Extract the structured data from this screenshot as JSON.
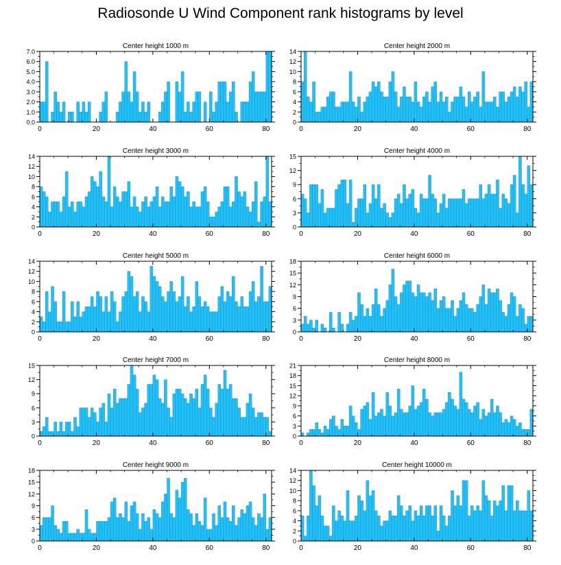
{
  "title": "Radiosonde U Wind Component rank histograms by level",
  "bar_color": "#19c3ff",
  "bar_stroke": "#5a6a75",
  "chart_data": [
    {
      "type": "bar",
      "title": "Center height 1000 m",
      "xlabel": "",
      "ylabel": "",
      "xlim": [
        0,
        82
      ],
      "xticks": [
        0,
        20,
        40,
        60,
        80
      ],
      "ylim": [
        0,
        7
      ],
      "yticks": [
        0.0,
        1.0,
        2.0,
        3.0,
        4.0,
        5.0,
        6.0,
        7.0
      ],
      "ytick_labels": [
        "0.0",
        "1.0",
        "2.0",
        "3.0",
        "4.0",
        "5.0",
        "6.0",
        "7.0"
      ],
      "label_side": "left",
      "values": [
        2,
        2,
        6,
        0,
        1,
        3,
        2,
        1,
        2,
        0,
        1,
        1,
        0,
        2,
        1,
        2,
        1,
        2,
        0,
        0,
        0,
        1,
        2,
        3,
        0,
        0,
        0,
        1,
        2,
        3,
        6,
        3,
        2,
        5,
        3,
        1,
        2,
        1,
        2,
        0,
        0,
        0,
        1,
        2,
        3,
        4,
        0,
        0,
        4,
        3,
        5,
        1,
        2,
        1,
        2,
        3,
        3,
        0,
        2,
        0,
        3,
        1,
        2,
        4,
        4,
        4,
        2,
        3,
        4,
        1,
        0,
        2,
        2,
        2,
        4,
        5,
        3,
        3,
        3,
        3,
        7,
        7
      ]
    },
    {
      "type": "bar",
      "title": "Center height 2000 m",
      "xlabel": "",
      "ylabel": "",
      "xlim": [
        0,
        82
      ],
      "xticks": [
        0,
        20,
        40,
        60,
        80
      ],
      "ylim": [
        0,
        14
      ],
      "yticks": [
        0,
        2,
        4,
        6,
        8,
        10,
        12,
        14
      ],
      "ytick_labels": [
        "0",
        "2",
        "4",
        "6",
        "8",
        "10",
        "12",
        "14"
      ],
      "label_side": "left",
      "values": [
        8,
        14,
        5,
        4,
        8,
        2,
        2,
        3,
        3,
        5,
        6,
        6,
        3,
        3,
        4,
        4,
        4,
        10,
        4,
        3,
        5,
        2,
        4,
        5,
        6,
        8,
        7,
        8,
        6,
        5,
        5,
        8,
        10,
        6,
        3,
        5,
        7,
        5,
        5,
        4,
        8,
        4,
        3,
        5,
        6,
        4,
        7,
        8,
        4,
        6,
        4,
        5,
        2,
        4,
        5,
        5,
        7,
        5,
        3,
        6,
        4,
        5,
        6,
        3,
        10,
        4,
        4,
        4,
        5,
        3,
        6,
        6,
        4,
        5,
        6,
        7,
        5,
        7,
        6,
        8,
        3,
        8
      ]
    },
    {
      "type": "bar",
      "title": "Center height 3000 m",
      "xlabel": "",
      "ylabel": "",
      "xlim": [
        0,
        82
      ],
      "xticks": [
        0,
        20,
        40,
        60,
        80
      ],
      "ylim": [
        0,
        14
      ],
      "yticks": [
        0,
        2,
        4,
        6,
        8,
        10,
        12,
        14
      ],
      "ytick_labels": [
        "0",
        "2",
        "4",
        "6",
        "8",
        "10",
        "12",
        "14"
      ],
      "label_side": "left",
      "values": [
        8,
        7,
        6,
        3,
        5,
        5,
        5,
        3,
        6,
        11,
        4,
        5,
        3,
        5,
        5,
        4,
        6,
        7,
        10,
        9,
        8,
        11,
        6,
        5,
        14,
        4,
        8,
        6,
        5,
        7,
        7,
        9,
        4,
        6,
        4,
        3,
        5,
        6,
        4,
        5,
        6,
        8,
        4,
        6,
        5,
        5,
        8,
        6,
        10,
        9,
        8,
        6,
        7,
        4,
        5,
        4,
        4,
        7,
        8,
        5,
        2,
        2,
        3,
        4,
        5,
        8,
        8,
        4,
        5,
        10,
        7,
        6,
        7,
        4,
        3,
        5,
        9,
        1,
        5,
        6,
        14,
        5
      ]
    },
    {
      "type": "bar",
      "title": "Center height 4000 m",
      "xlabel": "",
      "ylabel": "",
      "xlim": [
        0,
        82
      ],
      "xticks": [
        0,
        20,
        40,
        60,
        80
      ],
      "ylim": [
        0,
        15
      ],
      "yticks": [
        0,
        3,
        6,
        9,
        12,
        15
      ],
      "ytick_labels": [
        "0",
        "3",
        "6",
        "9",
        "12",
        "15"
      ],
      "label_side": "left",
      "values": [
        7,
        6,
        3,
        9,
        9,
        9,
        5,
        8,
        3,
        4,
        4,
        4,
        8,
        9,
        10,
        10,
        5,
        10,
        1,
        4,
        6,
        6,
        9,
        3,
        5,
        9,
        6,
        9,
        4,
        5,
        3,
        2,
        3,
        6,
        7,
        5,
        9,
        6,
        7,
        8,
        4,
        3,
        7,
        6,
        6,
        11,
        7,
        6,
        3,
        5,
        7,
        4,
        6,
        6,
        6,
        6,
        6,
        8,
        5,
        6,
        6,
        6,
        6,
        9,
        6,
        7,
        9,
        7,
        7,
        10,
        4,
        7,
        6,
        5,
        9,
        11,
        3,
        15,
        9,
        7,
        13,
        9
      ]
    },
    {
      "type": "bar",
      "title": "Center height 5000 m",
      "xlabel": "",
      "ylabel": "",
      "xlim": [
        0,
        82
      ],
      "xticks": [
        0,
        20,
        40,
        60,
        80
      ],
      "ylim": [
        0,
        14
      ],
      "yticks": [
        0,
        2,
        4,
        6,
        8,
        10,
        12,
        14
      ],
      "ytick_labels": [
        "0",
        "2",
        "4",
        "6",
        "8",
        "10",
        "12",
        "14"
      ],
      "label_side": "left",
      "values": [
        3,
        2,
        8,
        4,
        9,
        6,
        2,
        2,
        8,
        2,
        2,
        6,
        3,
        6,
        3,
        4,
        5,
        5,
        7,
        5,
        8,
        7,
        4,
        7,
        4,
        8,
        6,
        2,
        4,
        7,
        8,
        12,
        11,
        7,
        8,
        4,
        7,
        6,
        4,
        13,
        11,
        10,
        9,
        7,
        6,
        8,
        10,
        8,
        6,
        7,
        11,
        5,
        7,
        4,
        5,
        10,
        7,
        5,
        6,
        5,
        4,
        4,
        4,
        7,
        9,
        6,
        8,
        7,
        11,
        6,
        5,
        7,
        5,
        5,
        8,
        10,
        6,
        7,
        13,
        6,
        6,
        9
      ]
    },
    {
      "type": "bar",
      "title": "Center height 6000 m",
      "xlabel": "",
      "ylabel": "",
      "xlim": [
        0,
        82
      ],
      "xticks": [
        0,
        20,
        40,
        60,
        80
      ],
      "ylim": [
        0,
        18
      ],
      "yticks": [
        0,
        3,
        6,
        9,
        12,
        15,
        18
      ],
      "ytick_labels": [
        "0",
        "3",
        "6",
        "9",
        "12",
        "15",
        "18"
      ],
      "label_side": "left",
      "values": [
        2,
        4,
        2,
        3,
        1,
        3,
        0,
        2,
        1,
        0,
        5,
        1,
        0,
        5,
        2,
        0,
        2,
        5,
        3,
        4,
        10,
        7,
        4,
        6,
        4,
        7,
        11,
        7,
        4,
        6,
        8,
        12,
        16,
        9,
        7,
        10,
        12,
        13,
        13,
        10,
        9,
        12,
        10,
        10,
        9,
        10,
        8,
        11,
        6,
        8,
        9,
        6,
        6,
        8,
        4,
        6,
        8,
        10,
        7,
        6,
        6,
        5,
        7,
        9,
        12,
        7,
        11,
        10,
        10,
        11,
        8,
        5,
        4,
        7,
        10,
        9,
        4,
        7,
        6,
        2,
        4,
        4
      ]
    },
    {
      "type": "bar",
      "title": "Center height 7000 m",
      "xlabel": "",
      "ylabel": "",
      "xlim": [
        0,
        82
      ],
      "xticks": [
        0,
        20,
        40,
        60,
        80
      ],
      "ylim": [
        0,
        15
      ],
      "yticks": [
        0,
        3,
        6,
        9,
        12,
        15
      ],
      "ytick_labels": [
        "0",
        "3",
        "6",
        "9",
        "12",
        "15"
      ],
      "label_side": "left",
      "values": [
        1,
        2,
        4,
        1,
        1,
        3,
        1,
        3,
        1,
        3,
        3,
        1,
        4,
        2,
        6,
        6,
        6,
        4,
        6,
        5,
        3,
        6,
        7,
        3,
        9,
        6,
        10,
        7,
        8,
        8,
        8,
        11,
        15,
        13,
        10,
        5,
        6,
        7,
        11,
        11,
        13,
        12,
        8,
        7,
        12,
        6,
        4,
        9,
        10,
        10,
        9,
        8,
        7,
        9,
        8,
        10,
        6,
        11,
        13,
        10,
        6,
        4,
        7,
        11,
        10,
        14,
        10,
        11,
        8,
        8,
        6,
        4,
        4,
        7,
        9,
        6,
        4,
        5,
        5,
        4,
        4,
        1
      ]
    },
    {
      "type": "bar",
      "title": "Center height 8000 m",
      "xlabel": "",
      "ylabel": "",
      "xlim": [
        0,
        82
      ],
      "xticks": [
        0,
        20,
        40,
        60,
        80
      ],
      "ylim": [
        0,
        21
      ],
      "yticks": [
        0,
        3,
        6,
        9,
        12,
        15,
        18,
        21
      ],
      "ytick_labels": [
        "0",
        "3",
        "6",
        "9",
        "12",
        "15",
        "18",
        "21"
      ],
      "label_side": "left",
      "values": [
        1,
        0,
        1,
        2,
        2,
        4,
        2,
        1,
        3,
        2,
        5,
        6,
        3,
        2,
        5,
        3,
        3,
        9,
        6,
        4,
        2,
        8,
        9,
        10,
        5,
        13,
        6,
        7,
        8,
        6,
        13,
        9,
        6,
        7,
        14,
        8,
        7,
        7,
        9,
        15,
        8,
        9,
        10,
        14,
        11,
        7,
        6,
        7,
        7,
        7,
        8,
        10,
        13,
        11,
        9,
        8,
        19,
        11,
        10,
        8,
        7,
        9,
        10,
        5,
        8,
        6,
        7,
        11,
        7,
        9,
        7,
        4,
        5,
        4,
        6,
        5,
        3,
        4,
        2,
        2,
        2,
        8
      ]
    },
    {
      "type": "bar",
      "title": "Center height 9000 m",
      "xlabel": "",
      "ylabel": "",
      "xlim": [
        0,
        82
      ],
      "xticks": [
        0,
        20,
        40,
        60,
        80
      ],
      "ylim": [
        0,
        18
      ],
      "yticks": [
        0,
        3,
        6,
        9,
        12,
        15,
        18
      ],
      "ytick_labels": [
        "0",
        "3",
        "6",
        "9",
        "12",
        "15",
        "18"
      ],
      "label_side": "left",
      "values": [
        4,
        6,
        6,
        6,
        9,
        4,
        3,
        2,
        5,
        5,
        2,
        2,
        2,
        3,
        2,
        2,
        8,
        3,
        2,
        2,
        5,
        5,
        5,
        5,
        6,
        10,
        11,
        6,
        7,
        6,
        10,
        5,
        9,
        10,
        7,
        3,
        7,
        5,
        6,
        3,
        8,
        7,
        6,
        10,
        12,
        16,
        7,
        6,
        13,
        11,
        15,
        16,
        8,
        7,
        4,
        7,
        5,
        4,
        11,
        3,
        3,
        7,
        4,
        9,
        6,
        10,
        6,
        5,
        9,
        4,
        6,
        8,
        7,
        9,
        10,
        6,
        4,
        7,
        6,
        12,
        3,
        6
      ]
    },
    {
      "type": "bar",
      "title": "Center height 10000 m",
      "xlabel": "",
      "ylabel": "",
      "xlim": [
        0,
        82
      ],
      "xticks": [
        0,
        20,
        40,
        60,
        80
      ],
      "ylim": [
        0,
        14
      ],
      "yticks": [
        0,
        2,
        4,
        6,
        8,
        10,
        12,
        14
      ],
      "ytick_labels": [
        "0",
        "2",
        "4",
        "6",
        "8",
        "10",
        "12",
        "14"
      ],
      "label_side": "left",
      "values": [
        5,
        1,
        5,
        14,
        11,
        7,
        9,
        5,
        3,
        3,
        1,
        7,
        4,
        6,
        5,
        4,
        10,
        4,
        4,
        5,
        9,
        8,
        6,
        12,
        9,
        10,
        6,
        5,
        3,
        4,
        4,
        6,
        5,
        5,
        9,
        7,
        5,
        6,
        7,
        4,
        6,
        5,
        7,
        5,
        7,
        7,
        5,
        7,
        2,
        7,
        5,
        3,
        5,
        10,
        7,
        9,
        7,
        12,
        12,
        5,
        7,
        6,
        7,
        6,
        12,
        9,
        8,
        5,
        8,
        7,
        8,
        11,
        6,
        11,
        11,
        6,
        8,
        6,
        6,
        6,
        10,
        6
      ]
    }
  ]
}
